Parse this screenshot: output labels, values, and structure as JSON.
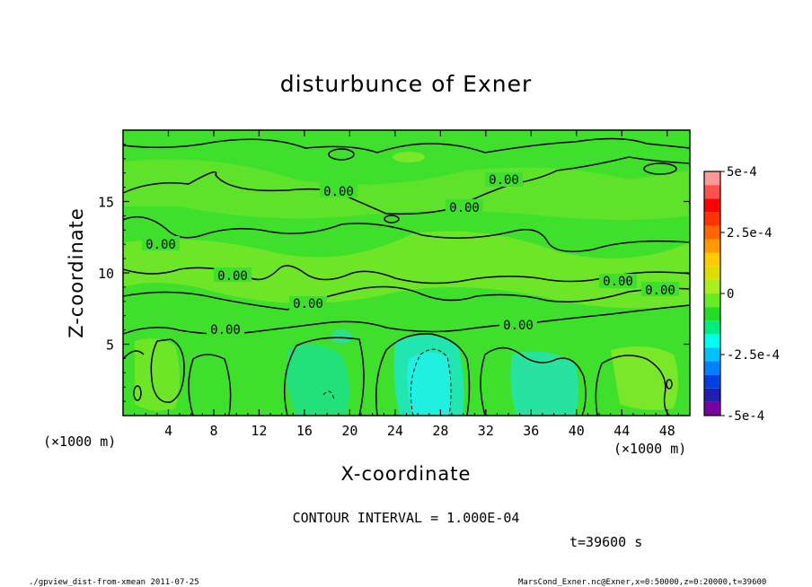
{
  "chart_data": {
    "type": "heatmap",
    "title": "disturbunce of Exner",
    "xlabel": "X-coordinate",
    "ylabel": "Z-coordinate",
    "x_unit": "(×1000 m)",
    "z_unit": "(×1000 m)",
    "xlim": [
      0,
      50
    ],
    "ylim": [
      0,
      20
    ],
    "x_ticks": [
      "4",
      "8",
      "12",
      "16",
      "20",
      "24",
      "28",
      "32",
      "36",
      "40",
      "44",
      "48"
    ],
    "x_tick_values": [
      4,
      8,
      12,
      16,
      20,
      24,
      28,
      32,
      36,
      40,
      44,
      48
    ],
    "y_ticks": [
      "5",
      "10",
      "15"
    ],
    "y_tick_values": [
      5,
      10,
      15
    ],
    "colorbar": {
      "range": [
        -0.0005,
        0.0005
      ],
      "labels": [
        "5e-4",
        "2.5e-4",
        "0",
        "-2.5e-4",
        "-5e-4"
      ],
      "label_values": [
        0.0005,
        0.00025,
        0,
        -0.00025,
        -0.0005
      ],
      "colors": [
        "#7a00a0",
        "#2020b0",
        "#0040e0",
        "#0080ff",
        "#00c0ff",
        "#00ffee",
        "#00ee80",
        "#22dd22",
        "#66ee22",
        "#aaee22",
        "#dddd00",
        "#ffcc00",
        "#ff9900",
        "#ff6600",
        "#ff3300",
        "#ff0000",
        "#ff5050",
        "#ff9999"
      ]
    },
    "background_color": "#22dd44",
    "contour_labels": [
      "0.00",
      "0.00",
      "0.00",
      "0.00",
      "0.00",
      "0.00",
      "0.00",
      "0.00",
      "0.00",
      "0.00"
    ],
    "contour_interval_text": "CONTOUR INTERVAL = 1.000E-04",
    "time_text": "t=39600 s"
  },
  "footer": {
    "left": "./gpview_dist-from-xmean  2011-07-25",
    "right": "MarsCond_Exner.nc@Exner,x=0:50000,z=0:20000,t=39600"
  }
}
